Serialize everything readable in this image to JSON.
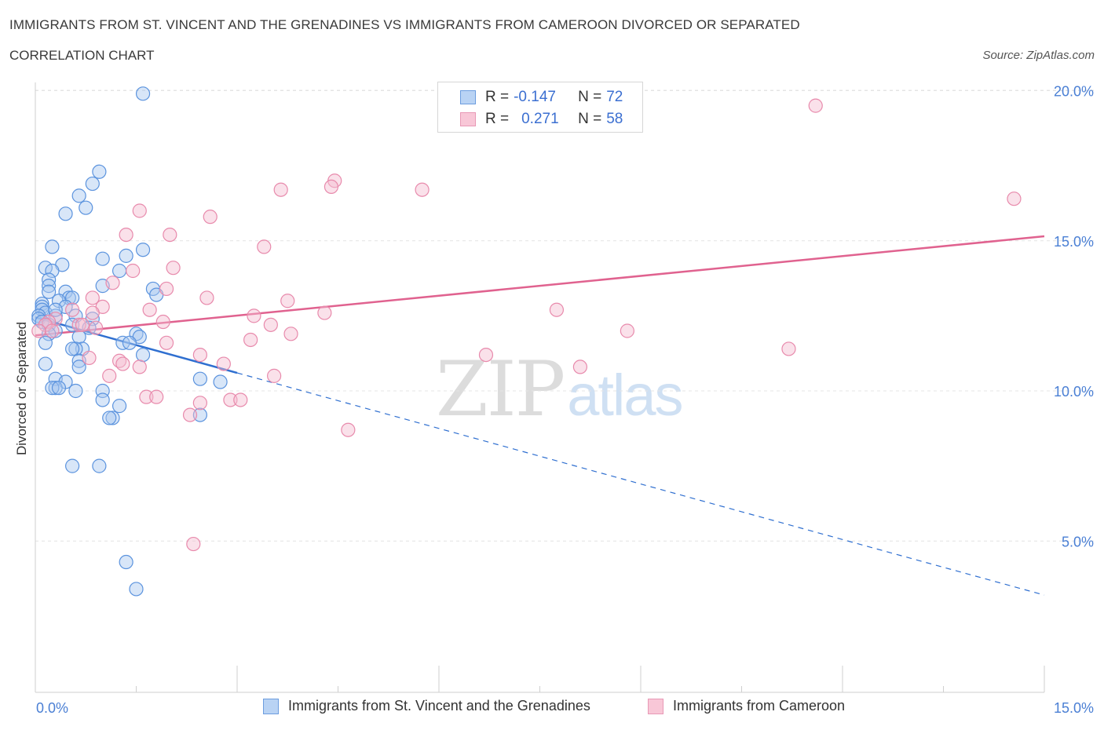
{
  "header": {
    "title": "IMMIGRANTS FROM ST. VINCENT AND THE GRENADINES VS IMMIGRANTS FROM CAMEROON DIVORCED OR SEPARATED",
    "subtitle": "CORRELATION CHART",
    "source": "Source: ZipAtlas.com"
  },
  "legend": {
    "series1": {
      "r_label": "R =",
      "r_value": "-0.147",
      "n_label": "N =",
      "n_value": "72"
    },
    "series2": {
      "r_label": "R =",
      "r_value": "0.271",
      "n_label": "N =",
      "n_value": "58"
    }
  },
  "bottom_legend": {
    "series1": "Immigrants from St. Vincent and the Grenadines",
    "series2": "Immigrants from Cameroon"
  },
  "watermark": {
    "zip": "ZIP",
    "atlas": "atlas"
  },
  "colors": {
    "blue_fill": "#a9c8f0",
    "blue_stroke": "#5b93de",
    "blue_line": "#2f6fd0",
    "pink_fill": "#f5bcd0",
    "pink_stroke": "#e88aac",
    "pink_line": "#e0628f",
    "grid": "#e4e4e4",
    "axis_text": "#4a7fd4"
  },
  "chart_data": {
    "type": "scatter",
    "title": "IMMIGRANTS FROM ST. VINCENT AND THE GRENADINES VS IMMIGRANTS FROM CAMEROON DIVORCED OR SEPARATED",
    "xlabel": "",
    "ylabel": "Divorced or Separated",
    "xlim": [
      0,
      15
    ],
    "ylim": [
      0,
      20
    ],
    "x_ticks": [
      "0.0%",
      "15.0%"
    ],
    "y_ticks": [
      {
        "value": 5,
        "label": "5.0%"
      },
      {
        "value": 10,
        "label": "10.0%"
      },
      {
        "value": 15,
        "label": "15.0%"
      },
      {
        "value": 20,
        "label": "20.0%"
      }
    ],
    "grid": true,
    "series": [
      {
        "name": "Immigrants from St. Vincent and the Grenadines",
        "color": "blue",
        "r": -0.147,
        "n": 72,
        "trend": {
          "x0": 0,
          "y0": 12.45,
          "x1": 3.0,
          "y1": 10.6,
          "x_end": 15.0,
          "y_end": 3.2,
          "solid_until": 3.0
        },
        "points": [
          [
            1.6,
            19.9
          ],
          [
            0.95,
            17.3
          ],
          [
            0.85,
            16.9
          ],
          [
            0.65,
            16.5
          ],
          [
            0.75,
            16.1
          ],
          [
            0.45,
            15.9
          ],
          [
            0.25,
            14.8
          ],
          [
            1.6,
            14.7
          ],
          [
            1.35,
            14.5
          ],
          [
            1.0,
            14.4
          ],
          [
            0.4,
            14.2
          ],
          [
            0.15,
            14.1
          ],
          [
            0.25,
            14.0
          ],
          [
            1.25,
            14.0
          ],
          [
            0.2,
            13.7
          ],
          [
            0.2,
            13.5
          ],
          [
            1.0,
            13.5
          ],
          [
            1.75,
            13.4
          ],
          [
            0.45,
            13.3
          ],
          [
            1.8,
            13.2
          ],
          [
            0.5,
            13.1
          ],
          [
            0.55,
            13.1
          ],
          [
            0.35,
            13.0
          ],
          [
            0.1,
            12.9
          ],
          [
            0.1,
            12.8
          ],
          [
            0.1,
            12.7
          ],
          [
            0.15,
            12.6
          ],
          [
            0.05,
            12.5
          ],
          [
            0.3,
            12.5
          ],
          [
            0.05,
            12.4
          ],
          [
            0.1,
            12.3
          ],
          [
            0.6,
            12.5
          ],
          [
            0.85,
            12.4
          ],
          [
            0.2,
            12.2
          ],
          [
            0.55,
            12.2
          ],
          [
            0.3,
            12.0
          ],
          [
            0.2,
            11.9
          ],
          [
            1.5,
            11.9
          ],
          [
            0.65,
            11.8
          ],
          [
            1.55,
            11.8
          ],
          [
            0.15,
            11.6
          ],
          [
            1.3,
            11.6
          ],
          [
            1.4,
            11.6
          ],
          [
            0.7,
            11.4
          ],
          [
            0.6,
            11.4
          ],
          [
            0.55,
            11.4
          ],
          [
            1.6,
            11.2
          ],
          [
            0.65,
            11.0
          ],
          [
            0.15,
            10.9
          ],
          [
            0.65,
            10.8
          ],
          [
            2.45,
            10.4
          ],
          [
            2.75,
            10.3
          ],
          [
            0.3,
            10.4
          ],
          [
            0.45,
            10.3
          ],
          [
            0.3,
            10.1
          ],
          [
            0.25,
            10.1
          ],
          [
            0.35,
            10.1
          ],
          [
            0.6,
            10.0
          ],
          [
            1.0,
            10.0
          ],
          [
            1.0,
            9.7
          ],
          [
            1.25,
            9.5
          ],
          [
            1.15,
            9.1
          ],
          [
            1.1,
            9.1
          ],
          [
            2.45,
            9.2
          ],
          [
            0.55,
            7.5
          ],
          [
            0.95,
            7.5
          ],
          [
            1.35,
            4.3
          ],
          [
            1.5,
            3.4
          ],
          [
            0.8,
            12.1
          ],
          [
            0.45,
            12.8
          ],
          [
            0.2,
            13.3
          ],
          [
            0.3,
            12.7
          ]
        ]
      },
      {
        "name": "Immigrants from Cameroon",
        "color": "pink",
        "r": 0.271,
        "n": 58,
        "trend": {
          "x0": 0,
          "y0": 11.85,
          "x1": 15.0,
          "y1": 15.15
        },
        "points": [
          [
            11.6,
            19.5
          ],
          [
            14.55,
            16.4
          ],
          [
            4.45,
            17.0
          ],
          [
            4.4,
            16.8
          ],
          [
            3.65,
            16.7
          ],
          [
            5.75,
            16.7
          ],
          [
            1.55,
            16.0
          ],
          [
            2.6,
            15.8
          ],
          [
            1.35,
            15.2
          ],
          [
            2.0,
            15.2
          ],
          [
            3.4,
            14.8
          ],
          [
            2.05,
            14.1
          ],
          [
            1.45,
            14.0
          ],
          [
            1.15,
            13.6
          ],
          [
            1.95,
            13.4
          ],
          [
            0.85,
            13.1
          ],
          [
            2.55,
            13.1
          ],
          [
            3.75,
            13.0
          ],
          [
            1.0,
            12.8
          ],
          [
            0.55,
            12.7
          ],
          [
            1.7,
            12.7
          ],
          [
            0.85,
            12.6
          ],
          [
            7.75,
            12.7
          ],
          [
            4.3,
            12.6
          ],
          [
            3.25,
            12.5
          ],
          [
            1.9,
            12.3
          ],
          [
            0.3,
            12.4
          ],
          [
            0.2,
            12.3
          ],
          [
            0.15,
            12.2
          ],
          [
            0.25,
            12.0
          ],
          [
            0.65,
            12.2
          ],
          [
            3.5,
            12.2
          ],
          [
            0.05,
            12.0
          ],
          [
            0.9,
            12.1
          ],
          [
            3.8,
            11.9
          ],
          [
            8.8,
            12.0
          ],
          [
            3.2,
            11.7
          ],
          [
            1.95,
            11.6
          ],
          [
            0.8,
            11.1
          ],
          [
            2.45,
            11.2
          ],
          [
            6.7,
            11.2
          ],
          [
            11.2,
            11.4
          ],
          [
            1.25,
            11.0
          ],
          [
            1.3,
            10.9
          ],
          [
            1.55,
            10.8
          ],
          [
            2.8,
            10.9
          ],
          [
            8.1,
            10.8
          ],
          [
            1.1,
            10.5
          ],
          [
            3.55,
            10.5
          ],
          [
            1.65,
            9.8
          ],
          [
            1.8,
            9.8
          ],
          [
            2.9,
            9.7
          ],
          [
            3.05,
            9.7
          ],
          [
            2.45,
            9.6
          ],
          [
            2.3,
            9.2
          ],
          [
            4.65,
            8.7
          ],
          [
            2.35,
            4.9
          ],
          [
            0.7,
            12.2
          ]
        ]
      }
    ]
  }
}
